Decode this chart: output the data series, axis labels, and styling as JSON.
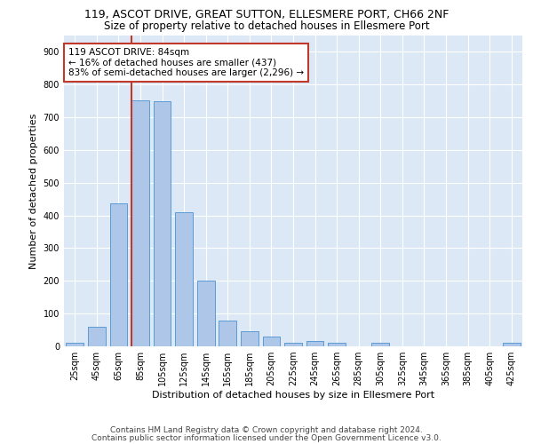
{
  "title1": "119, ASCOT DRIVE, GREAT SUTTON, ELLESMERE PORT, CH66 2NF",
  "title2": "Size of property relative to detached houses in Ellesmere Port",
  "xlabel": "Distribution of detached houses by size in Ellesmere Port",
  "ylabel": "Number of detached properties",
  "categories": [
    "25sqm",
    "45sqm",
    "65sqm",
    "85sqm",
    "105sqm",
    "125sqm",
    "145sqm",
    "165sqm",
    "185sqm",
    "205sqm",
    "225sqm",
    "245sqm",
    "265sqm",
    "285sqm",
    "305sqm",
    "325sqm",
    "345sqm",
    "365sqm",
    "385sqm",
    "405sqm",
    "425sqm"
  ],
  "values": [
    10,
    60,
    437,
    752,
    750,
    410,
    200,
    80,
    45,
    30,
    10,
    15,
    10,
    0,
    10,
    0,
    0,
    0,
    0,
    0,
    10
  ],
  "bar_color": "#aec6e8",
  "bar_edge_color": "#5b9bd5",
  "bar_width": 0.8,
  "annotation_line1": "119 ASCOT DRIVE: 84sqm",
  "annotation_line2": "← 16% of detached houses are smaller (437)",
  "annotation_line3": "83% of semi-detached houses are larger (2,296) →",
  "vline_color": "#c0392b",
  "annotation_box_color": "#ffffff",
  "annotation_box_edge": "#c0392b",
  "ylim": [
    0,
    950
  ],
  "yticks": [
    0,
    100,
    200,
    300,
    400,
    500,
    600,
    700,
    800,
    900
  ],
  "plot_bg_color": "#dce8f5",
  "footer1": "Contains HM Land Registry data © Crown copyright and database right 2024.",
  "footer2": "Contains public sector information licensed under the Open Government Licence v3.0.",
  "title_fontsize": 9,
  "subtitle_fontsize": 8.5,
  "axis_label_fontsize": 8,
  "tick_fontsize": 7,
  "annotation_fontsize": 7.5,
  "footer_fontsize": 6.5
}
